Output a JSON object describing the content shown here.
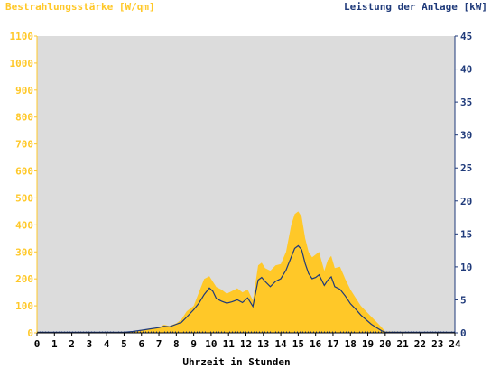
{
  "chart_data": {
    "type": "area",
    "left_axis_title": "Bestrahlungsstärke [W/qm]",
    "right_axis_title": "Leistung der Anlage [kW]",
    "xlabel": "Uhrzeit in Stunden",
    "xlim": [
      0,
      24
    ],
    "ylim_left": [
      0,
      1100
    ],
    "ylim_right": [
      0,
      45
    ],
    "x_ticks": [
      "0",
      "1",
      "2",
      "3",
      "4",
      "5",
      "6",
      "7",
      "8",
      "9",
      "10",
      "11",
      "12",
      "13",
      "14",
      "15",
      "16",
      "17",
      "18",
      "19",
      "20",
      "21",
      "22",
      "23",
      "24"
    ],
    "y_ticks_left": [
      "0",
      "100",
      "200",
      "300",
      "400",
      "500",
      "600",
      "700",
      "800",
      "900",
      "1000",
      "1100"
    ],
    "y_ticks_right": [
      "0",
      "5",
      "10",
      "15",
      "20",
      "25",
      "30",
      "35",
      "40",
      "45"
    ],
    "series": [
      {
        "name": "Bestrahlungsstärke",
        "type": "area",
        "axis": "left",
        "color": "#ffc828",
        "x": [
          0,
          5,
          5.5,
          6,
          6.5,
          7,
          7.3,
          7.6,
          8,
          8.3,
          8.6,
          9,
          9.3,
          9.6,
          9.9,
          10.1,
          10.3,
          10.6,
          10.9,
          11.2,
          11.5,
          11.8,
          12.1,
          12.4,
          12.7,
          12.9,
          13.1,
          13.4,
          13.7,
          14,
          14.3,
          14.6,
          14.8,
          15,
          15.2,
          15.4,
          15.6,
          15.8,
          16,
          16.2,
          16.5,
          16.7,
          16.9,
          17.1,
          17.4,
          17.7,
          18,
          18.3,
          18.6,
          18.9,
          19.2,
          19.5,
          19.8,
          20,
          24
        ],
        "values": [
          0,
          0,
          5,
          10,
          15,
          20,
          30,
          25,
          35,
          50,
          80,
          100,
          150,
          200,
          210,
          190,
          170,
          160,
          145,
          155,
          165,
          150,
          160,
          120,
          250,
          260,
          240,
          230,
          250,
          255,
          300,
          400,
          440,
          450,
          430,
          350,
          300,
          280,
          290,
          300,
          230,
          270,
          285,
          240,
          245,
          200,
          160,
          130,
          100,
          80,
          60,
          40,
          20,
          5,
          0
        ]
      },
      {
        "name": "Leistung der Anlage",
        "type": "line",
        "axis": "right",
        "color": "#1f3a7a",
        "x": [
          0,
          5,
          5.5,
          6,
          6.5,
          7,
          7.3,
          7.6,
          8,
          8.3,
          8.6,
          9,
          9.3,
          9.6,
          9.9,
          10.1,
          10.3,
          10.6,
          10.9,
          11.2,
          11.5,
          11.8,
          12.1,
          12.4,
          12.7,
          12.9,
          13.1,
          13.4,
          13.7,
          14,
          14.3,
          14.6,
          14.8,
          15,
          15.2,
          15.4,
          15.6,
          15.8,
          16,
          16.2,
          16.5,
          16.7,
          16.9,
          17.1,
          17.4,
          17.7,
          18,
          18.3,
          18.6,
          18.9,
          19.2,
          19.5,
          19.8,
          20,
          24
        ],
        "values": [
          0.1,
          0.1,
          0.2,
          0.4,
          0.6,
          0.8,
          1.0,
          0.9,
          1.3,
          1.6,
          2.4,
          3.5,
          4.5,
          5.8,
          6.8,
          6.3,
          5.2,
          4.8,
          4.5,
          4.7,
          5.0,
          4.6,
          5.3,
          4.0,
          8.0,
          8.4,
          7.8,
          7.0,
          7.8,
          8.2,
          9.5,
          11.5,
          12.8,
          13.2,
          12.6,
          10.5,
          9.0,
          8.2,
          8.4,
          8.8,
          7.2,
          8.0,
          8.5,
          7.0,
          6.6,
          5.6,
          4.4,
          3.6,
          2.7,
          2.0,
          1.3,
          0.8,
          0.3,
          0.1,
          0.1
        ]
      }
    ],
    "grid": false,
    "plot_background": "#dcdcdc",
    "left_axis_color": "#ffc828",
    "right_axis_color": "#1f3a7a"
  }
}
